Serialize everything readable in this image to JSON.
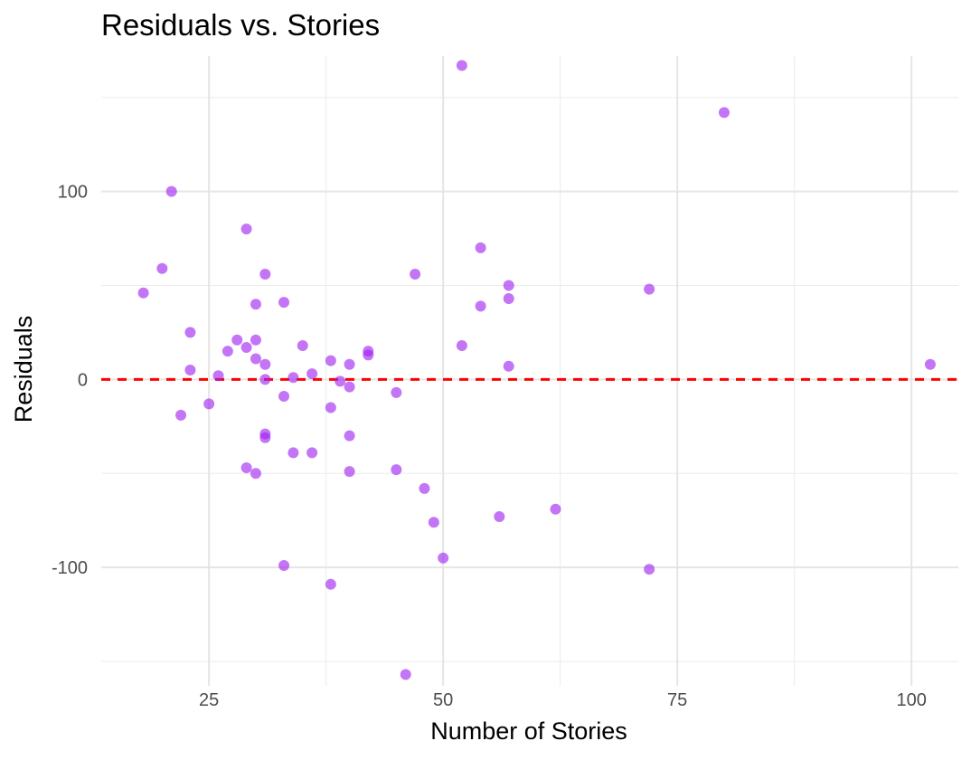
{
  "chart_data": {
    "type": "scatter",
    "title": "Residuals vs. Stories",
    "xlabel": "Number of Stories",
    "ylabel": "Residuals",
    "xlim": [
      13.5,
      105
    ],
    "ylim": [
      -163,
      172
    ],
    "x_ticks": [
      25,
      50,
      75,
      100
    ],
    "y_ticks": [
      -100,
      0,
      100
    ],
    "x_tick_labels": [
      "25",
      "50",
      "75",
      "100"
    ],
    "y_tick_labels": [
      "-100",
      "0",
      "100"
    ],
    "grid": true,
    "reference_line": {
      "y": 0,
      "style": "dashed",
      "color": "#ff0000"
    },
    "point_color": "#a020f0",
    "points": [
      {
        "x": 18,
        "y": 46
      },
      {
        "x": 20,
        "y": 59
      },
      {
        "x": 21,
        "y": 100
      },
      {
        "x": 22,
        "y": -19
      },
      {
        "x": 23,
        "y": 25
      },
      {
        "x": 23,
        "y": 5
      },
      {
        "x": 25,
        "y": -13
      },
      {
        "x": 26,
        "y": 2
      },
      {
        "x": 27,
        "y": 15
      },
      {
        "x": 28,
        "y": 21
      },
      {
        "x": 29,
        "y": 80
      },
      {
        "x": 29,
        "y": 17
      },
      {
        "x": 29,
        "y": -47
      },
      {
        "x": 30,
        "y": 40
      },
      {
        "x": 30,
        "y": 21
      },
      {
        "x": 30,
        "y": 11
      },
      {
        "x": 30,
        "y": -50
      },
      {
        "x": 31,
        "y": 56
      },
      {
        "x": 31,
        "y": 8
      },
      {
        "x": 31,
        "y": 0
      },
      {
        "x": 31,
        "y": -29
      },
      {
        "x": 31,
        "y": -31
      },
      {
        "x": 33,
        "y": 41
      },
      {
        "x": 33,
        "y": -9
      },
      {
        "x": 33,
        "y": -99
      },
      {
        "x": 34,
        "y": 1
      },
      {
        "x": 34,
        "y": -39
      },
      {
        "x": 35,
        "y": 18
      },
      {
        "x": 36,
        "y": 3
      },
      {
        "x": 36,
        "y": -39
      },
      {
        "x": 38,
        "y": 10
      },
      {
        "x": 38,
        "y": -15
      },
      {
        "x": 38,
        "y": -109
      },
      {
        "x": 39,
        "y": -1
      },
      {
        "x": 40,
        "y": 8
      },
      {
        "x": 40,
        "y": -4
      },
      {
        "x": 40,
        "y": -30
      },
      {
        "x": 40,
        "y": -49
      },
      {
        "x": 42,
        "y": 15
      },
      {
        "x": 42,
        "y": 13
      },
      {
        "x": 45,
        "y": -7
      },
      {
        "x": 45,
        "y": -48
      },
      {
        "x": 46,
        "y": -157
      },
      {
        "x": 47,
        "y": 56
      },
      {
        "x": 48,
        "y": -58
      },
      {
        "x": 49,
        "y": -76
      },
      {
        "x": 50,
        "y": -95
      },
      {
        "x": 52,
        "y": 167
      },
      {
        "x": 52,
        "y": 18
      },
      {
        "x": 54,
        "y": 70
      },
      {
        "x": 54,
        "y": 39
      },
      {
        "x": 56,
        "y": -73
      },
      {
        "x": 57,
        "y": 50
      },
      {
        "x": 57,
        "y": 43
      },
      {
        "x": 57,
        "y": 7
      },
      {
        "x": 62,
        "y": -69
      },
      {
        "x": 72,
        "y": 48
      },
      {
        "x": 72,
        "y": -101
      },
      {
        "x": 80,
        "y": 142
      },
      {
        "x": 102,
        "y": 8
      }
    ]
  }
}
